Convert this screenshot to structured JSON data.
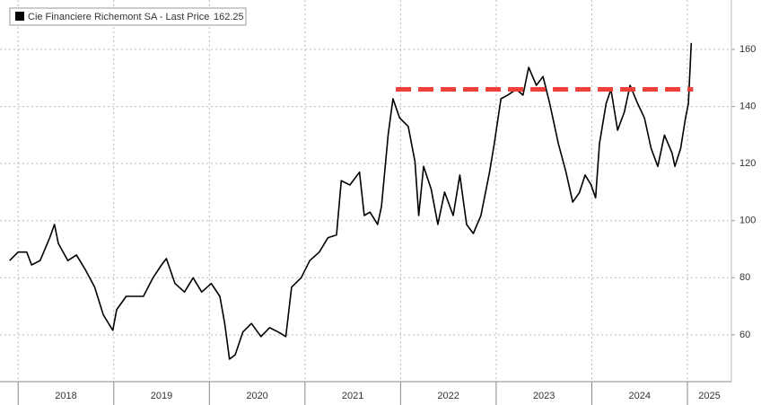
{
  "chart_data": {
    "type": "line",
    "series": [
      {
        "name": "Cie Financiere Richemont SA - Last Price",
        "color": "#000000",
        "x": [
          2017.91,
          2018.0,
          2018.09,
          2018.14,
          2018.23,
          2018.33,
          2018.38,
          2018.42,
          2018.52,
          2018.61,
          2018.7,
          2018.8,
          2018.89,
          2018.99,
          2019.03,
          2019.13,
          2019.22,
          2019.31,
          2019.41,
          2019.5,
          2019.55,
          2019.64,
          2019.74,
          2019.83,
          2019.92,
          2020.02,
          2020.11,
          2020.16,
          2020.21,
          2020.27,
          2020.35,
          2020.44,
          2020.54,
          2020.63,
          2020.72,
          2020.8,
          2020.86,
          2020.96,
          2021.05,
          2021.15,
          2021.24,
          2021.33,
          2021.38,
          2021.47,
          2021.57,
          2021.62,
          2021.68,
          2021.76,
          2021.8,
          2021.87,
          2021.92,
          2021.99,
          2022.08,
          2022.15,
          2022.19,
          2022.24,
          2022.32,
          2022.39,
          2022.46,
          2022.55,
          2022.62,
          2022.69,
          2022.76,
          2022.84,
          2022.93,
          2022.98,
          2023.05,
          2023.12,
          2023.21,
          2023.28,
          2023.34,
          2023.42,
          2023.49,
          2023.56,
          2023.65,
          2023.73,
          2023.8,
          2023.87,
          2023.93,
          2023.99,
          2024.04,
          2024.08,
          2024.15,
          2024.2,
          2024.27,
          2024.34,
          2024.4,
          2024.48,
          2024.55,
          2024.62,
          2024.69,
          2024.76,
          2024.84,
          2024.87,
          2024.93,
          2024.98,
          2025.01,
          2025.04
        ],
        "values": [
          86,
          89,
          89,
          84.5,
          86,
          94,
          98.7,
          92,
          86,
          88,
          83,
          76.7,
          67,
          61.6,
          68.8,
          73.5,
          73.5,
          73.5,
          80,
          84.5,
          86.7,
          78,
          75,
          80,
          75,
          78,
          73.5,
          64,
          51.5,
          53,
          61,
          64,
          59.4,
          62.5,
          61,
          59.4,
          76.7,
          80,
          86,
          89,
          94,
          95,
          114,
          112.5,
          117,
          101.8,
          103,
          98.7,
          105,
          130,
          142.7,
          136,
          133,
          120.7,
          101.8,
          119,
          111,
          98.7,
          110,
          101.8,
          116,
          98.7,
          95.5,
          101.8,
          117,
          127,
          142.7,
          144,
          146,
          144,
          153.7,
          147.4,
          150.5,
          141,
          127,
          117,
          106.5,
          109.8,
          116,
          112.7,
          108,
          127,
          141,
          146,
          131.7,
          138,
          147.4,
          141,
          136,
          125.4,
          119,
          130,
          123.7,
          119,
          125.4,
          136,
          141,
          162.25
        ]
      }
    ],
    "reference_line": {
      "value": 146,
      "x": [
        2021.95,
        2025.06
      ],
      "color": "#f0403a"
    },
    "xlim": [
      2017.81,
      2025.46
    ],
    "xticks": [
      2018,
      2019,
      2020,
      2021,
      2022,
      2023,
      2024,
      2025
    ],
    "ylim": [
      43.6,
      177.3
    ],
    "yticks": [
      60,
      80,
      100,
      120,
      140,
      160
    ],
    "grid": true
  }
}
